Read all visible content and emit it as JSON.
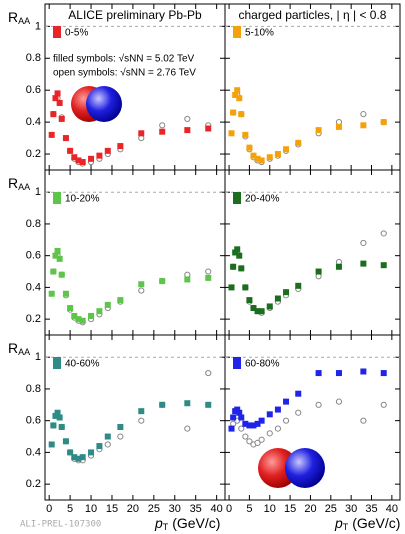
{
  "footer": "ALI-PREL-107300",
  "chart_data": [
    {
      "type": "scatter",
      "title": "ALICE preliminary Pb-Pb",
      "annotations": [
        "filled symbols: √sNN = 5.02 TeV",
        "open symbols: √sNN = 2.76 TeV"
      ],
      "ylabel": "R",
      "ylabel_sub": "AA",
      "label": "0-5%",
      "color": "#e8262a",
      "xlim": [
        -1,
        42
      ],
      "ylim": [
        0.1,
        1.14
      ],
      "xticks": [
        0,
        5,
        10,
        15,
        20,
        25,
        30,
        35,
        40
      ],
      "yticks": [
        0.2,
        0.4,
        0.6,
        0.8,
        1
      ],
      "x": [
        0.6,
        1,
        1.5,
        2,
        2.5,
        3,
        4,
        5,
        6,
        7,
        8,
        10,
        12,
        14,
        17,
        22,
        27,
        33,
        38
      ],
      "values": [
        0.32,
        0.45,
        0.55,
        0.58,
        0.52,
        0.42,
        0.3,
        0.22,
        0.18,
        0.16,
        0.15,
        0.17,
        0.19,
        0.22,
        0.25,
        0.33,
        0.34,
        0.35,
        0.36
      ],
      "x_open": [
        1,
        2,
        3,
        4,
        5,
        6,
        7,
        8,
        10,
        12,
        14,
        17,
        22,
        27,
        33,
        38
      ],
      "values_open": [
        0.45,
        0.55,
        0.43,
        0.3,
        0.22,
        0.17,
        0.15,
        0.14,
        0.15,
        0.17,
        0.2,
        0.23,
        0.3,
        0.38,
        0.42,
        0.38
      ]
    },
    {
      "type": "scatter",
      "title": "charged particles, | η | < 0.8",
      "label": "5-10%",
      "color": "#f5a20a",
      "xlim": [
        -1,
        42
      ],
      "ylim": [
        0.1,
        1.14
      ],
      "xticks": [
        0,
        5,
        10,
        15,
        20,
        25,
        30,
        35,
        40
      ],
      "yticks": [
        0.2,
        0.4,
        0.6,
        0.8,
        1
      ],
      "x": [
        0.6,
        1,
        1.5,
        2,
        2.5,
        3,
        4,
        5,
        6,
        7,
        8,
        10,
        12,
        14,
        17,
        22,
        27,
        33,
        38
      ],
      "values": [
        0.33,
        0.46,
        0.57,
        0.6,
        0.55,
        0.45,
        0.32,
        0.24,
        0.19,
        0.17,
        0.16,
        0.18,
        0.2,
        0.23,
        0.27,
        0.35,
        0.37,
        0.38,
        0.4
      ],
      "x_open": [
        1,
        2,
        3,
        4,
        5,
        6,
        7,
        8,
        10,
        12,
        14,
        17,
        22,
        27,
        33,
        38
      ],
      "values_open": [
        0.46,
        0.57,
        0.45,
        0.31,
        0.23,
        0.18,
        0.16,
        0.15,
        0.17,
        0.19,
        0.22,
        0.26,
        0.33,
        0.4,
        0.45,
        0.4
      ]
    },
    {
      "type": "scatter",
      "ylabel": "R",
      "ylabel_sub": "AA",
      "label": "10-20%",
      "color": "#5fc44a",
      "xlim": [
        -1,
        42
      ],
      "ylim": [
        0.1,
        1.14
      ],
      "xticks": [
        0,
        5,
        10,
        15,
        20,
        25,
        30,
        35,
        40
      ],
      "yticks": [
        0.2,
        0.4,
        0.6,
        0.8,
        1
      ],
      "x": [
        0.6,
        1,
        1.5,
        2,
        2.5,
        3,
        4,
        5,
        6,
        7,
        8,
        10,
        12,
        14,
        17,
        22,
        27,
        33,
        38
      ],
      "values": [
        0.36,
        0.5,
        0.6,
        0.63,
        0.58,
        0.48,
        0.36,
        0.27,
        0.22,
        0.2,
        0.19,
        0.22,
        0.25,
        0.29,
        0.32,
        0.42,
        0.44,
        0.45,
        0.46
      ],
      "x_open": [
        1,
        2,
        3,
        4,
        5,
        6,
        7,
        8,
        10,
        12,
        14,
        17,
        22,
        27,
        33,
        38
      ],
      "values_open": [
        0.5,
        0.6,
        0.48,
        0.35,
        0.26,
        0.21,
        0.19,
        0.18,
        0.2,
        0.23,
        0.27,
        0.31,
        0.38,
        0.44,
        0.48,
        0.5
      ]
    },
    {
      "type": "scatter",
      "label": "20-40%",
      "color": "#1b6e1e",
      "xlim": [
        -1,
        42
      ],
      "ylim": [
        0.1,
        1.14
      ],
      "xticks": [
        0,
        5,
        10,
        15,
        20,
        25,
        30,
        35,
        40
      ],
      "yticks": [
        0.2,
        0.4,
        0.6,
        0.8,
        1
      ],
      "x": [
        0.6,
        1,
        1.5,
        2,
        2.5,
        3,
        4,
        5,
        6,
        7,
        8,
        10,
        12,
        14,
        17,
        22,
        27,
        33,
        38
      ],
      "values": [
        0.4,
        0.53,
        0.62,
        0.64,
        0.6,
        0.52,
        0.4,
        0.32,
        0.27,
        0.25,
        0.25,
        0.28,
        0.33,
        0.37,
        0.41,
        0.5,
        0.53,
        0.55,
        0.54
      ],
      "x_open": [
        1,
        2,
        3,
        4,
        5,
        6,
        7,
        8,
        10,
        12,
        14,
        17,
        22,
        27,
        33,
        38
      ],
      "values_open": [
        0.53,
        0.62,
        0.52,
        0.4,
        0.31,
        0.27,
        0.25,
        0.24,
        0.27,
        0.31,
        0.35,
        0.39,
        0.47,
        0.56,
        0.68,
        0.74
      ]
    },
    {
      "type": "scatter",
      "ylabel": "R",
      "ylabel_sub": "AA",
      "xlabel": "p",
      "xlabel_sub": "T",
      "xlabel_unit": "(GeV/c)",
      "label": "40-60%",
      "color": "#2e8b86",
      "xlim": [
        -1,
        42
      ],
      "ylim": [
        0.1,
        1.14
      ],
      "xticks": [
        0,
        5,
        10,
        15,
        20,
        25,
        30,
        35,
        40
      ],
      "yticks": [
        0.2,
        0.4,
        0.6,
        0.8,
        1
      ],
      "x": [
        0.6,
        1,
        1.5,
        2,
        2.5,
        3,
        4,
        5,
        6,
        7,
        8,
        10,
        12,
        14,
        17,
        22,
        27,
        33,
        38
      ],
      "values": [
        0.45,
        0.57,
        0.63,
        0.65,
        0.62,
        0.56,
        0.47,
        0.4,
        0.37,
        0.36,
        0.37,
        0.4,
        0.44,
        0.5,
        0.56,
        0.66,
        0.7,
        0.71,
        0.7
      ],
      "x_open": [
        1,
        2,
        3,
        4,
        5,
        6,
        7,
        8,
        10,
        12,
        14,
        17,
        22,
        27,
        33,
        38
      ],
      "values_open": [
        0.57,
        0.64,
        0.56,
        0.47,
        0.4,
        0.36,
        0.35,
        0.35,
        0.38,
        0.42,
        0.45,
        0.5,
        0.6,
        0.7,
        0.55,
        0.9
      ]
    },
    {
      "type": "scatter",
      "xlabel": "p",
      "xlabel_sub": "T",
      "xlabel_unit": "(GeV/c)",
      "label": "60-80%",
      "color": "#1f24e8",
      "xlim": [
        -1,
        42
      ],
      "ylim": [
        0.1,
        1.14
      ],
      "xticks": [
        0,
        5,
        10,
        15,
        20,
        25,
        30,
        35,
        40
      ],
      "yticks": [
        0.2,
        0.4,
        0.6,
        0.8,
        1
      ],
      "x": [
        0.6,
        1,
        1.5,
        2,
        2.5,
        3,
        4,
        5,
        6,
        7,
        8,
        10,
        12,
        14,
        17,
        22,
        27,
        33,
        38
      ],
      "values": [
        0.55,
        0.62,
        0.66,
        0.67,
        0.65,
        0.62,
        0.58,
        0.57,
        0.57,
        0.58,
        0.6,
        0.64,
        0.67,
        0.72,
        0.77,
        0.9,
        0.9,
        0.91,
        0.9
      ],
      "x_open": [
        1,
        2,
        3,
        4,
        5,
        6,
        7,
        8,
        10,
        12,
        14,
        17,
        22,
        27,
        33,
        38
      ],
      "values_open": [
        0.58,
        0.6,
        0.55,
        0.5,
        0.47,
        0.45,
        0.46,
        0.48,
        0.52,
        0.55,
        0.6,
        0.65,
        0.7,
        0.72,
        0.6,
        0.7
      ]
    }
  ]
}
